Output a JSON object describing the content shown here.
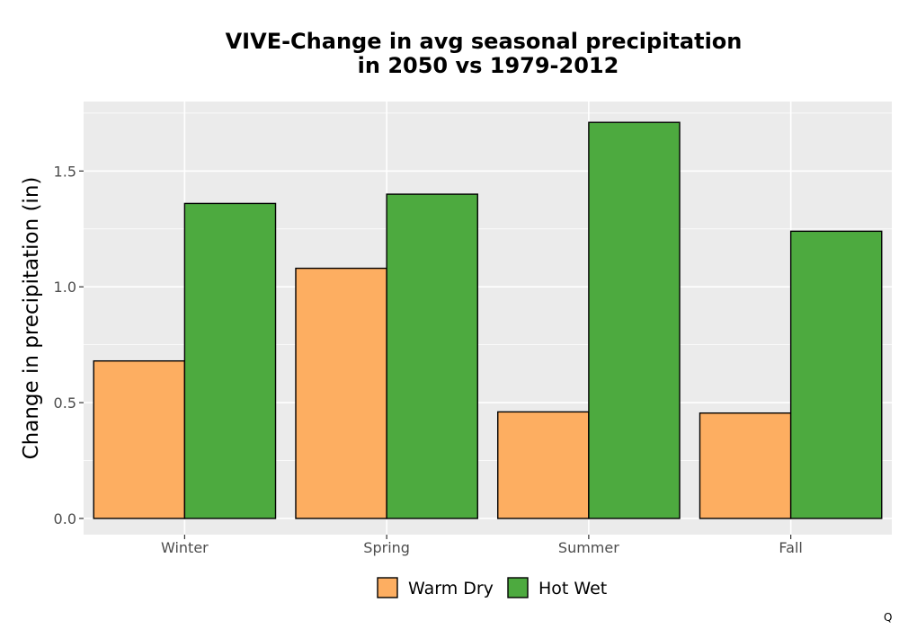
{
  "chart_data": {
    "type": "bar",
    "title_line1": "VIVE-Change in avg seasonal precipitation",
    "title_line2": "in 2050 vs 1979-2012",
    "xlabel": "",
    "ylabel": "Change in precipitation (in)",
    "categories": [
      "Winter",
      "Spring",
      "Summer",
      "Fall"
    ],
    "series": [
      {
        "name": "Warm Dry",
        "color": "#fdae61",
        "values": [
          0.68,
          1.08,
          0.46,
          0.455
        ]
      },
      {
        "name": "Hot Wet",
        "color": "#4daa3f",
        "values": [
          1.36,
          1.4,
          1.71,
          1.24
        ]
      }
    ],
    "ylim": [
      -0.07,
      1.8
    ],
    "yticks": [
      0.0,
      0.5,
      1.0,
      1.5
    ],
    "ytick_labels": [
      "0.0",
      "0.5",
      "1.0",
      "1.5"
    ],
    "grid": true,
    "legend_position": "bottom",
    "panel_background": "#ebebeb"
  },
  "corner_label": "Q"
}
